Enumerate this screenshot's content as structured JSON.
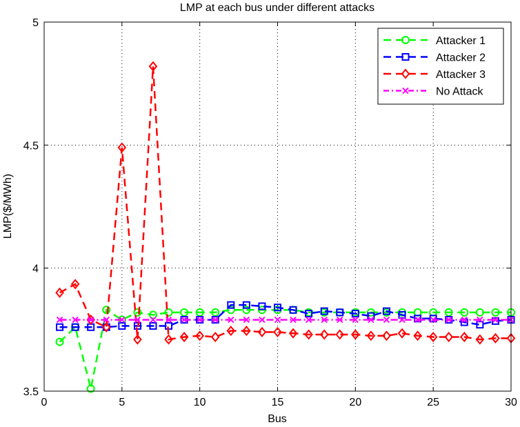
{
  "chart_data": {
    "type": "line",
    "title": "LMP at each bus under different attacks",
    "xlabel": "Bus",
    "ylabel": "LMP($/MWh)",
    "xlim": [
      0,
      30
    ],
    "ylim": [
      3.5,
      5
    ],
    "xticks": [
      "0",
      "5",
      "10",
      "15",
      "20",
      "25",
      "30"
    ],
    "yticks": [
      "3.5",
      "4",
      "4.5",
      "5"
    ],
    "grid": true,
    "legend_position": "top-right",
    "x": [
      1,
      2,
      3,
      4,
      5,
      6,
      7,
      8,
      9,
      10,
      11,
      12,
      13,
      14,
      15,
      16,
      17,
      18,
      19,
      20,
      21,
      22,
      23,
      24,
      25,
      26,
      27,
      28,
      29,
      30
    ],
    "series": [
      {
        "name": "Attacker 1",
        "color": "#00ff00",
        "marker": "circle",
        "line": "dashed",
        "values": [
          3.7,
          3.76,
          3.51,
          3.83,
          3.79,
          3.82,
          3.81,
          3.82,
          3.82,
          3.82,
          3.82,
          3.83,
          3.83,
          3.83,
          3.83,
          3.83,
          3.82,
          3.82,
          3.82,
          3.82,
          3.82,
          3.82,
          3.82,
          3.82,
          3.82,
          3.82,
          3.82,
          3.82,
          3.82,
          3.82
        ]
      },
      {
        "name": "Attacker 2",
        "color": "#0000ff",
        "marker": "square",
        "line": "dashed",
        "values": [
          3.76,
          3.76,
          3.76,
          3.76,
          3.765,
          3.765,
          3.765,
          3.765,
          3.79,
          3.79,
          3.79,
          3.85,
          3.85,
          3.845,
          3.84,
          3.83,
          3.815,
          3.825,
          3.82,
          3.815,
          3.805,
          3.825,
          3.81,
          3.795,
          3.795,
          3.79,
          3.78,
          3.77,
          3.785,
          3.79
        ]
      },
      {
        "name": "Attacker 3",
        "color": "#ff0000",
        "marker": "diamond",
        "line": "dashed",
        "values": [
          3.9,
          3.935,
          3.79,
          3.76,
          4.49,
          3.71,
          4.82,
          3.71,
          3.72,
          3.725,
          3.72,
          3.745,
          3.745,
          3.74,
          3.74,
          3.735,
          3.73,
          3.73,
          3.73,
          3.73,
          3.725,
          3.725,
          3.735,
          3.725,
          3.72,
          3.72,
          3.72,
          3.71,
          3.715,
          3.715
        ]
      },
      {
        "name": "No Attack",
        "color": "#ff00ff",
        "marker": "x",
        "line": "dashdot",
        "values": [
          3.79,
          3.79,
          3.79,
          3.79,
          3.79,
          3.79,
          3.79,
          3.79,
          3.79,
          3.79,
          3.79,
          3.79,
          3.79,
          3.79,
          3.79,
          3.79,
          3.79,
          3.79,
          3.79,
          3.79,
          3.79,
          3.79,
          3.79,
          3.79,
          3.79,
          3.79,
          3.79,
          3.79,
          3.79,
          3.79
        ]
      }
    ]
  }
}
